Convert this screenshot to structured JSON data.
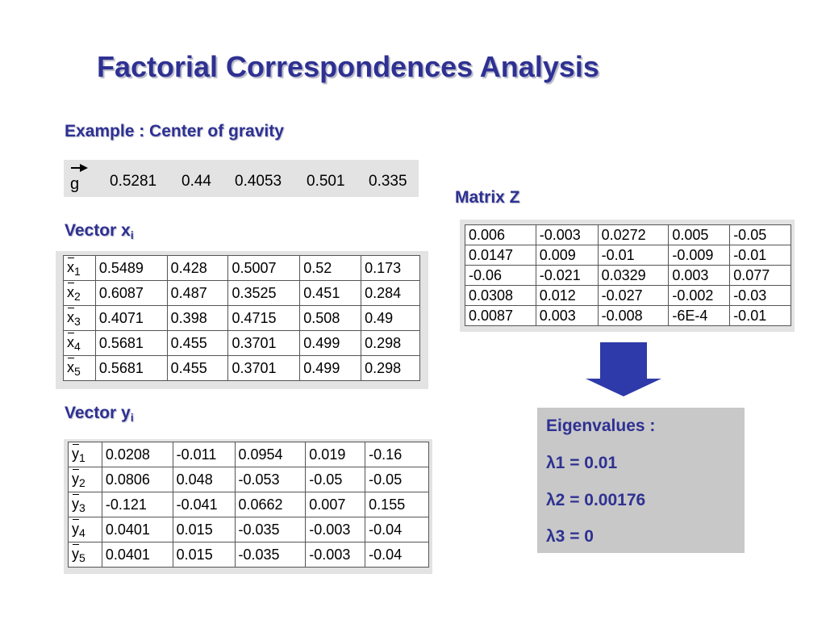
{
  "title": "Factorial Correspondences Analysis",
  "example_label": "Example : Center of gravity",
  "gravity": {
    "symbol": "g",
    "values": [
      "0.5281",
      "0.44",
      "0.4053",
      "0.501",
      "0.335"
    ]
  },
  "vector_x": {
    "label": "Vector x",
    "subscript": "i",
    "rows": [
      {
        "sym": "x",
        "idx": "1",
        "cells": [
          "0.5489",
          "0.428",
          "0.5007",
          "0.52",
          "0.173"
        ]
      },
      {
        "sym": "x",
        "idx": "2",
        "cells": [
          "0.6087",
          "0.487",
          "0.3525",
          "0.451",
          "0.284"
        ]
      },
      {
        "sym": "x",
        "idx": "3",
        "cells": [
          "0.4071",
          "0.398",
          "0.4715",
          "0.508",
          "0.49"
        ]
      },
      {
        "sym": "x",
        "idx": "4",
        "cells": [
          "0.5681",
          "0.455",
          "0.3701",
          "0.499",
          "0.298"
        ]
      },
      {
        "sym": "x",
        "idx": "5",
        "cells": [
          "0.5681",
          "0.455",
          "0.3701",
          "0.499",
          "0.298"
        ]
      }
    ]
  },
  "vector_y": {
    "label": "Vector y",
    "subscript": "i",
    "rows": [
      {
        "sym": "y",
        "idx": "1",
        "cells": [
          "0.0208",
          "-0.011",
          "0.0954",
          "0.019",
          "-0.16"
        ]
      },
      {
        "sym": "y",
        "idx": "2",
        "cells": [
          "0.0806",
          "0.048",
          "-0.053",
          "-0.05",
          "-0.05"
        ]
      },
      {
        "sym": "y",
        "idx": "3",
        "cells": [
          "-0.121",
          "-0.041",
          "0.0662",
          "0.007",
          "0.155"
        ]
      },
      {
        "sym": "y",
        "idx": "4",
        "cells": [
          "0.0401",
          "0.015",
          "-0.035",
          "-0.003",
          "-0.04"
        ]
      },
      {
        "sym": "y",
        "idx": "5",
        "cells": [
          "0.0401",
          "0.015",
          "-0.035",
          "-0.003",
          "-0.04"
        ]
      }
    ]
  },
  "matrix_z": {
    "label": "Matrix Z",
    "rows": [
      [
        "0.006",
        "-0.003",
        "0.0272",
        "0.005",
        "-0.05"
      ],
      [
        "0.0147",
        "0.009",
        "-0.01",
        "-0.009",
        "-0.01"
      ],
      [
        "-0.06",
        "-0.021",
        "0.0329",
        "0.003",
        "0.077"
      ],
      [
        "0.0308",
        "0.012",
        "-0.027",
        "-0.002",
        "-0.03"
      ],
      [
        "0.0087",
        "0.003",
        "-0.008",
        "-6E-4",
        "-0.01"
      ]
    ]
  },
  "eigenvalues": {
    "heading": "Eigenvalues :",
    "items": [
      "λ1 = 0.01",
      "λ2 = 0.00176",
      "λ3 = 0"
    ]
  },
  "colors": {
    "heading": "#2e3192",
    "arrow": "#2e3aaa",
    "eigen_box": "#c8c8c8",
    "panel": "#e3e3e3"
  }
}
